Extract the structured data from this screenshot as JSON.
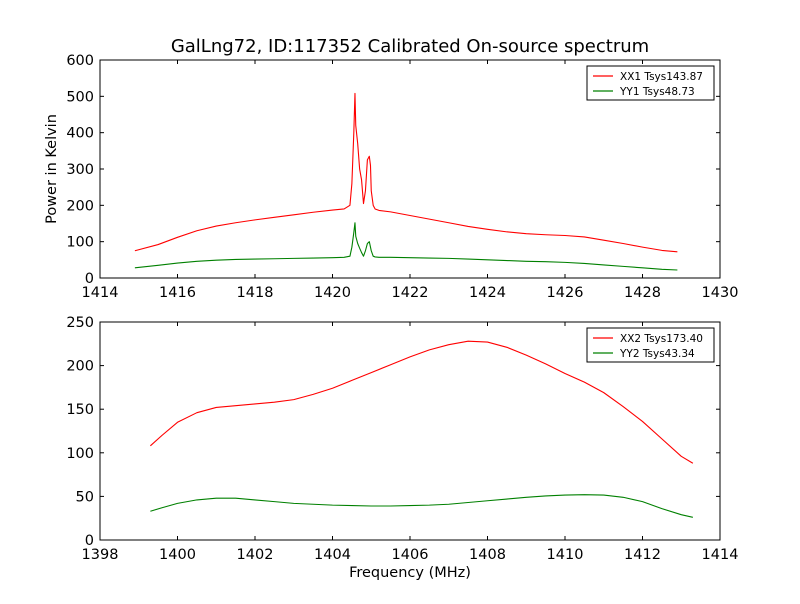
{
  "chart_data": [
    {
      "type": "line",
      "title": "GalLng72, ID:117352 Calibrated On-source spectrum",
      "xlabel": "",
      "ylabel": "Power in Kelvin",
      "xlim": [
        1414,
        1430
      ],
      "ylim": [
        0,
        600
      ],
      "xticks": [
        "1414",
        "1416",
        "1418",
        "1420",
        "1422",
        "1424",
        "1426",
        "1428",
        "1430"
      ],
      "yticks": [
        "0",
        "100",
        "200",
        "300",
        "400",
        "500",
        "600"
      ],
      "grid": false,
      "legend_position": "top-right",
      "series": [
        {
          "name": "XX1 Tsys143.87",
          "color": "#ff0000",
          "x": [
            1414.9,
            1415.5,
            1416,
            1416.5,
            1417,
            1417.5,
            1418,
            1418.5,
            1419,
            1419.5,
            1420,
            1420.3,
            1420.45,
            1420.5,
            1420.55,
            1420.58,
            1420.6,
            1420.65,
            1420.7,
            1420.75,
            1420.8,
            1420.85,
            1420.9,
            1420.95,
            1420.98,
            1421,
            1421.05,
            1421.1,
            1421.2,
            1421.5,
            1422,
            1422.5,
            1423,
            1423.5,
            1424,
            1424.5,
            1425,
            1425.5,
            1426,
            1426.5,
            1427,
            1427.5,
            1428,
            1428.5,
            1428.9
          ],
          "values": [
            75,
            92,
            112,
            130,
            143,
            152,
            160,
            167,
            174,
            181,
            187,
            190,
            200,
            260,
            400,
            508,
            420,
            370,
            300,
            270,
            205,
            240,
            325,
            335,
            310,
            240,
            200,
            190,
            186,
            182,
            172,
            162,
            152,
            142,
            134,
            127,
            122,
            119,
            117,
            113,
            104,
            95,
            85,
            76,
            72
          ]
        },
        {
          "name": "YY1 Tsys48.73",
          "color": "#008000",
          "x": [
            1414.9,
            1415.5,
            1416,
            1416.5,
            1417,
            1417.5,
            1418,
            1418.5,
            1419,
            1419.5,
            1420,
            1420.3,
            1420.45,
            1420.5,
            1420.55,
            1420.58,
            1420.6,
            1420.65,
            1420.7,
            1420.75,
            1420.8,
            1420.85,
            1420.9,
            1420.95,
            1421,
            1421.05,
            1421.1,
            1421.2,
            1421.5,
            1422,
            1422.5,
            1423,
            1423.5,
            1424,
            1424.5,
            1425,
            1425.5,
            1426,
            1426.5,
            1427,
            1427.5,
            1428,
            1428.5,
            1428.9
          ],
          "values": [
            28,
            35,
            41,
            46,
            49,
            51,
            52,
            53,
            54,
            55,
            56,
            57,
            60,
            85,
            125,
            152,
            115,
            95,
            82,
            70,
            60,
            75,
            95,
            100,
            75,
            60,
            58,
            57,
            57,
            56,
            55,
            54,
            52,
            50,
            48,
            46,
            45,
            43,
            40,
            36,
            32,
            28,
            24,
            22
          ]
        }
      ]
    },
    {
      "type": "line",
      "title": "",
      "xlabel": "Frequency (MHz)",
      "ylabel": "",
      "xlim": [
        1398,
        1414
      ],
      "ylim": [
        0,
        250
      ],
      "xticks": [
        "1398",
        "1400",
        "1402",
        "1404",
        "1406",
        "1408",
        "1410",
        "1412",
        "1414"
      ],
      "yticks": [
        "0",
        "50",
        "100",
        "150",
        "200",
        "250"
      ],
      "grid": false,
      "legend_position": "top-right",
      "series": [
        {
          "name": "XX2 Tsys173.40",
          "color": "#ff0000",
          "x": [
            1399.3,
            1399.6,
            1400,
            1400.5,
            1401,
            1401.5,
            1402,
            1402.5,
            1403,
            1403.5,
            1404,
            1404.5,
            1405,
            1405.5,
            1406,
            1406.5,
            1407,
            1407.5,
            1408,
            1408.5,
            1409,
            1409.5,
            1410,
            1410.5,
            1411,
            1411.5,
            1412,
            1412.5,
            1413,
            1413.3
          ],
          "values": [
            108,
            120,
            135,
            146,
            152,
            154,
            156,
            158,
            161,
            167,
            174,
            183,
            192,
            201,
            210,
            218,
            224,
            228,
            227,
            221,
            212,
            202,
            191,
            181,
            169,
            153,
            136,
            116,
            96,
            88
          ]
        },
        {
          "name": "YY2 Tsys43.34",
          "color": "#008000",
          "x": [
            1399.3,
            1399.6,
            1400,
            1400.5,
            1401,
            1401.5,
            1402,
            1402.5,
            1403,
            1403.5,
            1404,
            1404.5,
            1405,
            1405.5,
            1406,
            1406.5,
            1407,
            1407.5,
            1408,
            1408.5,
            1409,
            1409.5,
            1410,
            1410.5,
            1411,
            1411.5,
            1412,
            1412.5,
            1413,
            1413.3
          ],
          "values": [
            33,
            37,
            42,
            46,
            48,
            48,
            46,
            44,
            42,
            41,
            40,
            39.5,
            39,
            39,
            39.5,
            40,
            41,
            43,
            45,
            47,
            49,
            50.5,
            51.5,
            52,
            51.5,
            49,
            44,
            36,
            29,
            26
          ]
        }
      ]
    }
  ]
}
